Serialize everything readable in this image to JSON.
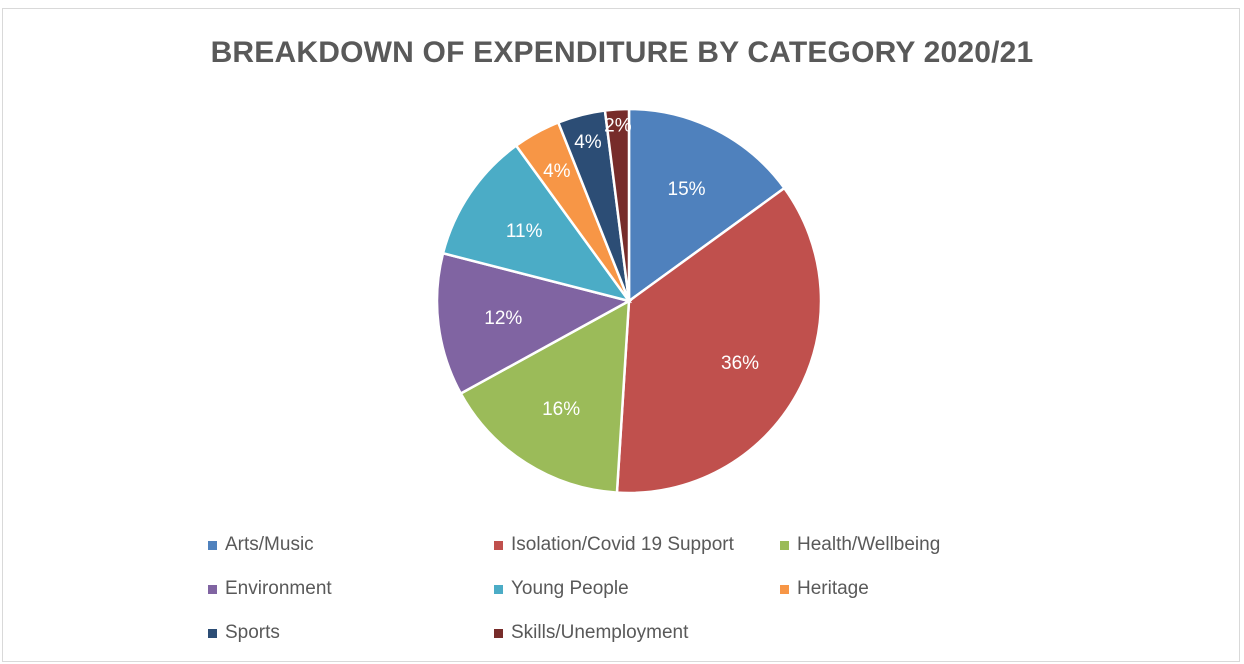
{
  "chart_data": {
    "type": "pie",
    "title": "BREAKDOWN OF EXPENDITURE BY CATEGORY 2020/21",
    "categories": [
      "Arts/Music",
      "Isolation/Covid 19 Support",
      "Health/Wellbeing",
      "Environment",
      "Young People",
      "Heritage",
      "Sports",
      "Skills/Unemployment"
    ],
    "values": [
      15,
      36,
      16,
      12,
      11,
      4,
      4,
      2
    ],
    "data_labels": [
      "15%",
      "36%",
      "16%",
      "12%",
      "11%",
      "4%",
      "4%",
      "2%"
    ],
    "colors": [
      "#4f81bd",
      "#c0504d",
      "#9bbb59",
      "#8064a2",
      "#4bacc6",
      "#f79646",
      "#2c4d75",
      "#772c2a"
    ],
    "legend_position": "bottom"
  }
}
